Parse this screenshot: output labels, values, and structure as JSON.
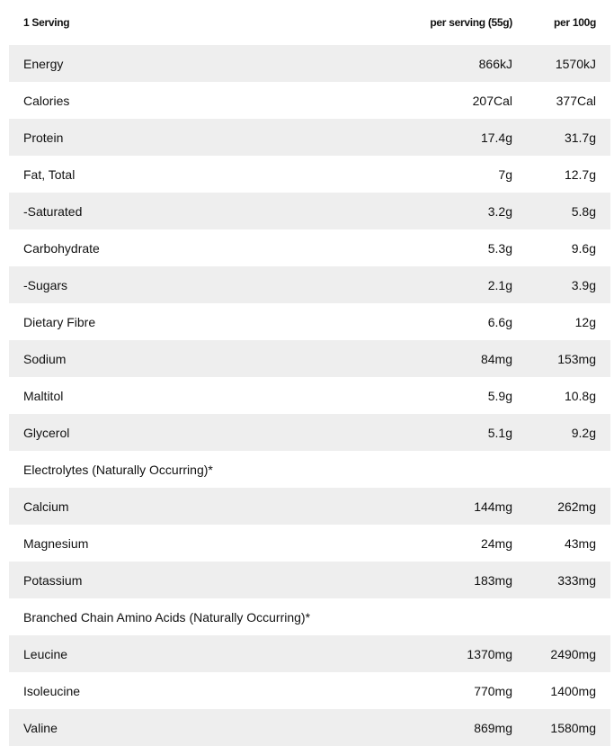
{
  "header": {
    "label": "1 Serving",
    "col1": "per serving (55g)",
    "col2": "per 100g"
  },
  "rows": [
    {
      "label": "Energy",
      "serving": "866kJ",
      "per100": "1570kJ"
    },
    {
      "label": "Calories",
      "serving": "207Cal",
      "per100": "377Cal"
    },
    {
      "label": "Protein",
      "serving": "17.4g",
      "per100": "31.7g"
    },
    {
      "label": "Fat, Total",
      "serving": "7g",
      "per100": "12.7g"
    },
    {
      "label": "-Saturated",
      "serving": "3.2g",
      "per100": "5.8g"
    },
    {
      "label": "Carbohydrate",
      "serving": "5.3g",
      "per100": "9.6g"
    },
    {
      "label": "-Sugars",
      "serving": "2.1g",
      "per100": "3.9g"
    },
    {
      "label": "Dietary Fibre",
      "serving": "6.6g",
      "per100": "12g"
    },
    {
      "label": "Sodium",
      "serving": "84mg",
      "per100": "153mg"
    },
    {
      "label": "Maltitol",
      "serving": "5.9g",
      "per100": "10.8g"
    },
    {
      "label": "Glycerol",
      "serving": "5.1g",
      "per100": "9.2g"
    },
    {
      "label": "Electrolytes (Naturally Occurring)*",
      "serving": "",
      "per100": ""
    },
    {
      "label": "Calcium",
      "serving": "144mg",
      "per100": "262mg"
    },
    {
      "label": "Magnesium",
      "serving": "24mg",
      "per100": "43mg"
    },
    {
      "label": "Potassium",
      "serving": "183mg",
      "per100": "333mg"
    },
    {
      "label": "Branched Chain Amino Acids (Naturally Occurring)*",
      "serving": "",
      "per100": ""
    },
    {
      "label": "Leucine",
      "serving": "1370mg",
      "per100": "2490mg"
    },
    {
      "label": "Isoleucine",
      "serving": "770mg",
      "per100": "1400mg"
    },
    {
      "label": "Valine",
      "serving": "869mg",
      "per100": "1580mg"
    }
  ],
  "colors": {
    "stripe": "#eeeeee",
    "text": "#111111"
  }
}
